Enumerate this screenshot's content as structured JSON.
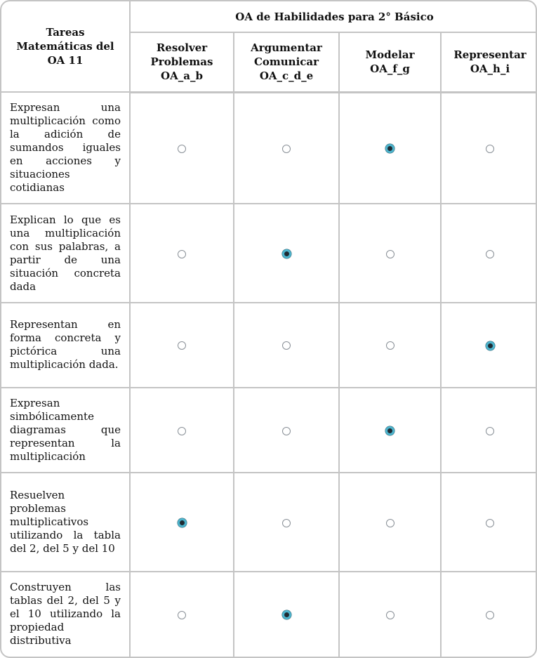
{
  "table": {
    "corner_header": "Tareas\nMatemáticas del\nOA 11",
    "group_header": "OA de Habilidades para 2° Básico",
    "columns": [
      "Resolver\nProblemas\nOA_a_b",
      "Argumentar\nComunicar\nOA_c_d_e",
      "Modelar\nOA_f_g",
      "Representar\nOA_h_i"
    ],
    "rows": [
      {
        "task": "Expresan una multiplicación como la adición de sumandos iguales en acciones y situaciones cotidianas",
        "selected_column": 2
      },
      {
        "task": "Explican lo que es una multiplicación con sus palabras, a partir de una situación concreta dada",
        "selected_column": 1
      },
      {
        "task": "Representan en forma concreta y pictórica una multiplicación dada.",
        "selected_column": 3
      },
      {
        "task": "Expresan simbólicamente diagramas que representan la multiplicación",
        "selected_column": 2
      },
      {
        "task": "Resuelven problemas multiplicativos utilizando la tabla del 2, del 5 y del 10",
        "selected_column": 0
      },
      {
        "task": "Construyen las tablas del 2, del 5 y el 10 utilizando la propiedad distributiva",
        "selected_column": 1
      }
    ]
  },
  "colors": {
    "border": "#c4c4c4",
    "radio_unselected_ring": "#888f96",
    "radio_selected_ring": "#4db5ce",
    "radio_selected_dot": "#1f2b33"
  }
}
